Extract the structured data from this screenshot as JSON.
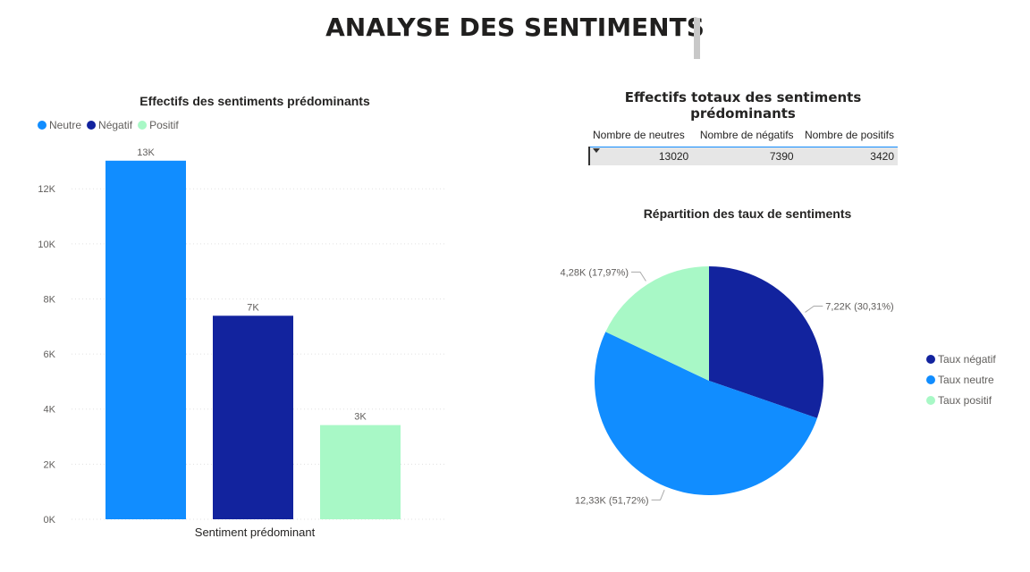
{
  "page": {
    "title": "ANALYSE DES SENTIMENTS"
  },
  "colors": {
    "neutre": "#118dff",
    "negatif": "#12239e",
    "positif": "#a8f8c6"
  },
  "chart_data": [
    {
      "type": "bar",
      "title": "Effectifs des sentiments prédominants",
      "xlabel": "Sentiment prédominant",
      "ylabel": "",
      "ylim": [
        0,
        13500
      ],
      "yticks": [
        0,
        2000,
        4000,
        6000,
        8000,
        10000,
        12000
      ],
      "ytick_labels": [
        "0K",
        "2K",
        "4K",
        "6K",
        "8K",
        "10K",
        "12K"
      ],
      "grid": true,
      "legend": "top-left",
      "categories": [
        "Sentiment prédominant"
      ],
      "series": [
        {
          "name": "Neutre",
          "values": [
            13020
          ],
          "label": "13K",
          "color": "#118dff"
        },
        {
          "name": "Négatif",
          "values": [
            7390
          ],
          "label": "7K",
          "color": "#12239e"
        },
        {
          "name": "Positif",
          "values": [
            3420
          ],
          "label": "3K",
          "color": "#a8f8c6"
        }
      ]
    },
    {
      "type": "table",
      "title": "Effectifs totaux des sentiments prédominants",
      "columns": [
        "Nombre de neutres",
        "Nombre de négatifs",
        "Nombre de positifs"
      ],
      "rows": [
        [
          "13020",
          "7390",
          "3420"
        ]
      ]
    },
    {
      "type": "pie",
      "title": "Répartition des taux de sentiments",
      "legend": "right",
      "slices": [
        {
          "name": "Taux négatif",
          "value": 7.22,
          "label": "7,22K (30,31%)",
          "color": "#12239e"
        },
        {
          "name": "Taux neutre",
          "value": 12.33,
          "label": "12,33K (51,72%)",
          "color": "#118dff"
        },
        {
          "name": "Taux positif",
          "value": 4.28,
          "label": "4,28K (17,97%)",
          "color": "#a8f8c6"
        }
      ]
    }
  ]
}
